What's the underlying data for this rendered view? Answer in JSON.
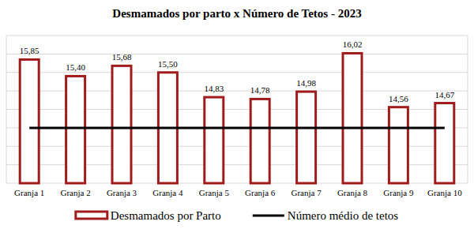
{
  "chart_data": {
    "type": "bar",
    "title": "Desmamados por parto x Número de Tetos - 2023",
    "categories": [
      "Granja 1",
      "Granja 2",
      "Granja 3",
      "Granja 4",
      "Granja 5",
      "Granja 6",
      "Granja 7",
      "Granja 8",
      "Granja 9",
      "Granja 10"
    ],
    "series": [
      {
        "name": "Desmamados por Parto",
        "type": "bar",
        "color": "#a01c1c",
        "values": [
          15.85,
          15.4,
          15.68,
          15.5,
          14.83,
          14.78,
          14.98,
          16.02,
          14.56,
          14.67
        ],
        "value_labels": [
          "15,85",
          "15,40",
          "15,68",
          "15,50",
          "14,83",
          "14,78",
          "14,98",
          "16,02",
          "14,56",
          "14,67"
        ]
      },
      {
        "name": "Número médio de tetos",
        "type": "line",
        "color": "#000000",
        "values": [
          14,
          14,
          14,
          14,
          14,
          14,
          14,
          14,
          14,
          14
        ]
      }
    ],
    "ylim": [
      12.5,
      16.5
    ],
    "yticks": [
      12.5,
      13,
      13.5,
      14,
      14.5,
      15,
      15.5,
      16,
      16.5
    ],
    "grid": true,
    "data_labels": true,
    "tick_labels": "x",
    "legend": "bottom"
  }
}
